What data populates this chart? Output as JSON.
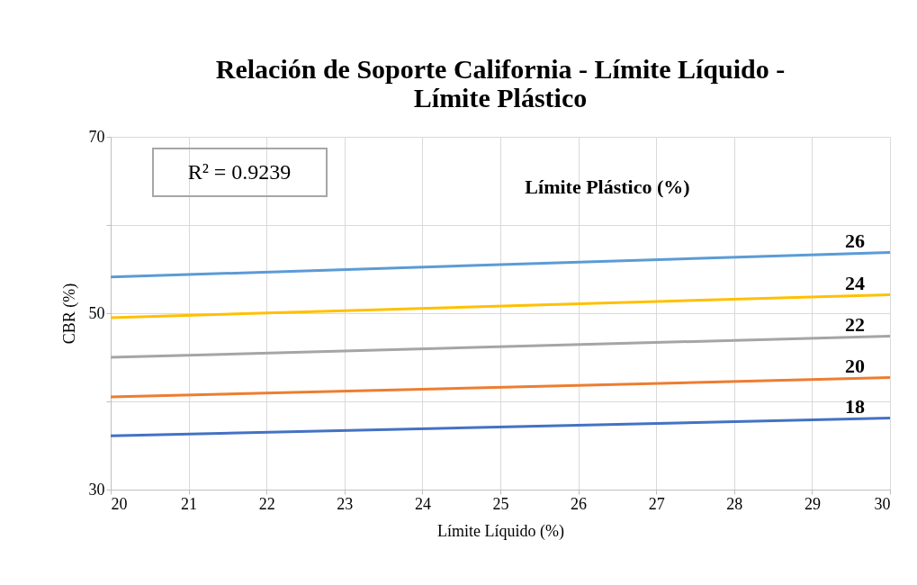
{
  "chart_data": {
    "type": "line",
    "title": [
      "Relación de Soporte California - Límite Líquido -",
      "Límite Plástico"
    ],
    "xlabel": "Límite Líquido (%)",
    "ylabel": "CBR (%)",
    "legend_title": "Límite Plástico (%)",
    "x": [
      20,
      30
    ],
    "series": [
      {
        "name": "26",
        "color": "#5b9bd5",
        "values": [
          54.1,
          56.9
        ]
      },
      {
        "name": "24",
        "color": "#ffc000",
        "values": [
          49.5,
          52.1
        ]
      },
      {
        "name": "22",
        "color": "#a5a5a5",
        "values": [
          45.0,
          47.4
        ]
      },
      {
        "name": "20",
        "color": "#ed7d31",
        "values": [
          40.5,
          42.7
        ]
      },
      {
        "name": "18",
        "color": "#4472c4",
        "values": [
          36.1,
          38.1
        ]
      }
    ],
    "annotations": [
      "R² = 0.9239"
    ],
    "xlim": [
      20,
      30
    ],
    "xticks": [
      20,
      21,
      22,
      23,
      24,
      25,
      26,
      27,
      28,
      29,
      30
    ],
    "ylim": [
      30,
      70
    ],
    "yticks": [
      30,
      {
        "value": 40,
        "label": null
      },
      50,
      {
        "value": 60,
        "label": null
      },
      70
    ],
    "grid": true,
    "legend": false,
    "marker": "none",
    "line_style": "solid"
  }
}
